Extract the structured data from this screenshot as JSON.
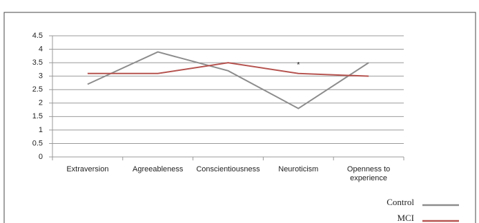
{
  "chart_data": {
    "type": "line",
    "categories": [
      "Extraversion",
      "Agreeableness",
      "Conscientiousness",
      "Neuroticism",
      "Openness to experience"
    ],
    "series": [
      {
        "name": "Control",
        "color": "#8c8c8c",
        "values": [
          2.7,
          3.9,
          3.2,
          1.8,
          3.5
        ]
      },
      {
        "name": "MCI",
        "color": "#b5524e",
        "values": [
          3.1,
          3.1,
          3.5,
          3.1,
          3.0
        ]
      }
    ],
    "ylim": [
      0,
      4.5
    ],
    "yticks": [
      0,
      0.5,
      1,
      1.5,
      2,
      2.5,
      3,
      3.5,
      4,
      4.5
    ],
    "grid": true,
    "annotation": "*",
    "legend": "bottom-right"
  }
}
